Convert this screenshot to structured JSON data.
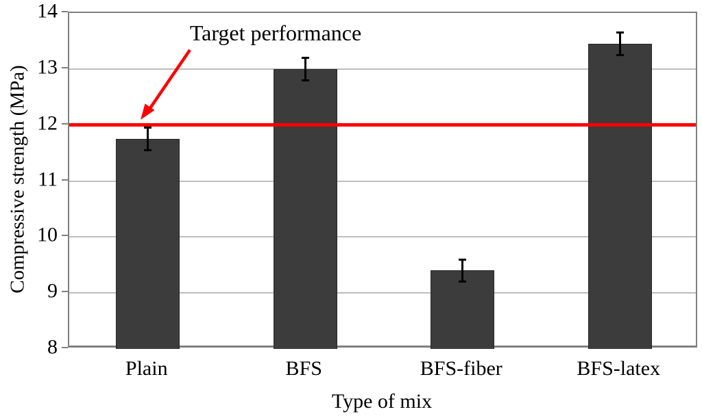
{
  "chart_data": {
    "type": "bar",
    "title": "",
    "categories": [
      "Plain",
      "BFS",
      "BFS-fiber",
      "BFS-latex"
    ],
    "series": [
      {
        "name": "Compressive strength",
        "values": [
          11.75,
          13.0,
          9.4,
          13.45
        ],
        "error_bars": [
          0.2,
          0.2,
          0.2,
          0.2
        ]
      }
    ],
    "xlabel": "Type of mix",
    "ylabel": "Compressive strength (MPa)",
    "ylim": [
      8,
      14
    ],
    "yticks": [
      8,
      9,
      10,
      11,
      12,
      13,
      14
    ],
    "grid": "horizontal",
    "legend": "none",
    "target_line": {
      "value": 12,
      "color": "#ff0000"
    },
    "annotation": {
      "text": "Target performance",
      "arrow_color": "#ff0000"
    },
    "colors": {
      "bar_fill": "#3c3c3c",
      "bar_border": "#262626",
      "gridline": "#bdbdbd",
      "axis": "#7f7f7f",
      "error_bar": "#000000",
      "text": "#000000"
    }
  }
}
